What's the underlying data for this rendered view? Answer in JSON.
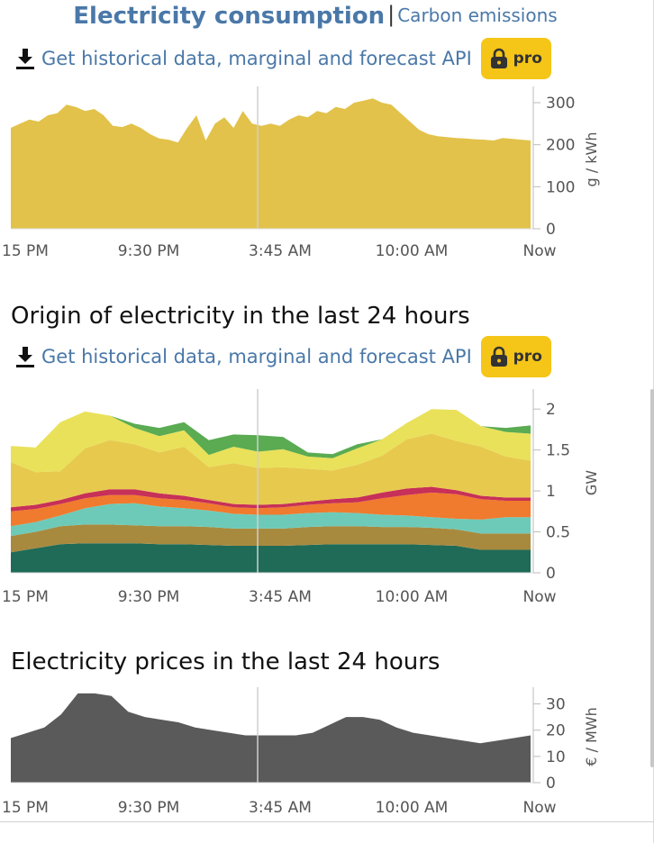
{
  "tabs": {
    "active": "Electricity consumption",
    "separator": "|",
    "other": "Carbon emissions"
  },
  "api": {
    "link_text": "Get historical data, marginal and forecast API",
    "badge": "pro",
    "badge_color": "#f5c518"
  },
  "sections": {
    "origin_title": "Origin of electricity in the last 24 hours",
    "prices_title": "Electricity prices in the last 24 hours"
  },
  "x_ticks": [
    "15 PM",
    "9:30 PM",
    "3:45 AM",
    "10:00 AM",
    "Now"
  ],
  "chart_data": [
    {
      "type": "area",
      "ylabel": "g / kWh",
      "ylim": [
        0,
        330
      ],
      "yticks": [
        "300",
        "200",
        "100",
        "0"
      ],
      "yticks_values": [
        300,
        200,
        100,
        0
      ],
      "color": "#e2c24a",
      "values": [
        240,
        250,
        260,
        255,
        270,
        275,
        295,
        290,
        280,
        285,
        270,
        245,
        242,
        250,
        240,
        225,
        215,
        212,
        205,
        240,
        270,
        210,
        250,
        265,
        240,
        280,
        250,
        245,
        250,
        245,
        260,
        270,
        265,
        280,
        275,
        290,
        285,
        300,
        305,
        310,
        300,
        295,
        275,
        255,
        235,
        225,
        220,
        218,
        216,
        215,
        213,
        212,
        210,
        216,
        214,
        212,
        210
      ]
    },
    {
      "type": "area",
      "ylabel": "GW",
      "ylim": [
        0,
        2.2
      ],
      "yticks": [
        "2",
        "1.5",
        "1",
        "0.5",
        "0"
      ],
      "yticks_values": [
        2,
        1.5,
        1,
        0.5,
        0
      ],
      "series": [
        {
          "color": "#1f6b58",
          "values": [
            0.25,
            0.3,
            0.35,
            0.36,
            0.36,
            0.36,
            0.35,
            0.35,
            0.34,
            0.33,
            0.33,
            0.33,
            0.34,
            0.35,
            0.35,
            0.35,
            0.35,
            0.34,
            0.33,
            0.28,
            0.28,
            0.28
          ]
        },
        {
          "color": "#a88a3f",
          "values": [
            0.2,
            0.2,
            0.22,
            0.23,
            0.23,
            0.22,
            0.22,
            0.22,
            0.22,
            0.21,
            0.21,
            0.21,
            0.22,
            0.22,
            0.22,
            0.21,
            0.21,
            0.21,
            0.2,
            0.2,
            0.2,
            0.2
          ]
        },
        {
          "color": "#6ecab8",
          "values": [
            0.12,
            0.12,
            0.13,
            0.2,
            0.25,
            0.27,
            0.24,
            0.22,
            0.2,
            0.18,
            0.17,
            0.17,
            0.17,
            0.17,
            0.16,
            0.15,
            0.14,
            0.13,
            0.13,
            0.17,
            0.2,
            0.2
          ]
        },
        {
          "color": "#f07a2e",
          "values": [
            0.18,
            0.16,
            0.14,
            0.12,
            0.11,
            0.1,
            0.1,
            0.1,
            0.09,
            0.08,
            0.08,
            0.09,
            0.1,
            0.11,
            0.13,
            0.2,
            0.25,
            0.3,
            0.3,
            0.25,
            0.2,
            0.2
          ]
        },
        {
          "color": "#c73058",
          "values": [
            0.05,
            0.05,
            0.05,
            0.06,
            0.07,
            0.07,
            0.06,
            0.05,
            0.04,
            0.04,
            0.04,
            0.04,
            0.04,
            0.05,
            0.06,
            0.07,
            0.08,
            0.07,
            0.05,
            0.04,
            0.04,
            0.04
          ]
        },
        {
          "color": "#e7c94e",
          "values": [
            0.55,
            0.4,
            0.35,
            0.55,
            0.6,
            0.55,
            0.5,
            0.6,
            0.4,
            0.5,
            0.45,
            0.45,
            0.4,
            0.35,
            0.4,
            0.45,
            0.6,
            0.65,
            0.6,
            0.6,
            0.5,
            0.45
          ]
        },
        {
          "color": "#e9e15a",
          "values": [
            0.2,
            0.3,
            0.6,
            0.45,
            0.3,
            0.2,
            0.2,
            0.2,
            0.15,
            0.2,
            0.2,
            0.22,
            0.15,
            0.15,
            0.2,
            0.2,
            0.2,
            0.3,
            0.38,
            0.25,
            0.3,
            0.33
          ]
        },
        {
          "color": "#5aab52",
          "values": [
            0.0,
            0.0,
            0.0,
            0.0,
            0.0,
            0.05,
            0.1,
            0.1,
            0.18,
            0.15,
            0.2,
            0.15,
            0.05,
            0.05,
            0.05,
            0.0,
            0.0,
            0.0,
            0.0,
            0.0,
            0.05,
            0.1
          ]
        }
      ]
    },
    {
      "type": "area",
      "ylabel": "€ / MWh",
      "ylim": [
        0,
        35
      ],
      "yticks": [
        "30",
        "20",
        "10",
        "0"
      ],
      "yticks_values": [
        30,
        20,
        10,
        0
      ],
      "color": "#5a5a5a",
      "values": [
        17,
        19,
        21,
        26,
        34,
        34,
        33,
        27,
        25,
        24,
        23,
        21,
        20,
        19,
        18,
        18,
        18,
        18,
        19,
        22,
        25,
        25,
        24,
        21,
        19,
        18,
        17,
        16,
        15,
        16,
        17,
        18
      ]
    }
  ]
}
